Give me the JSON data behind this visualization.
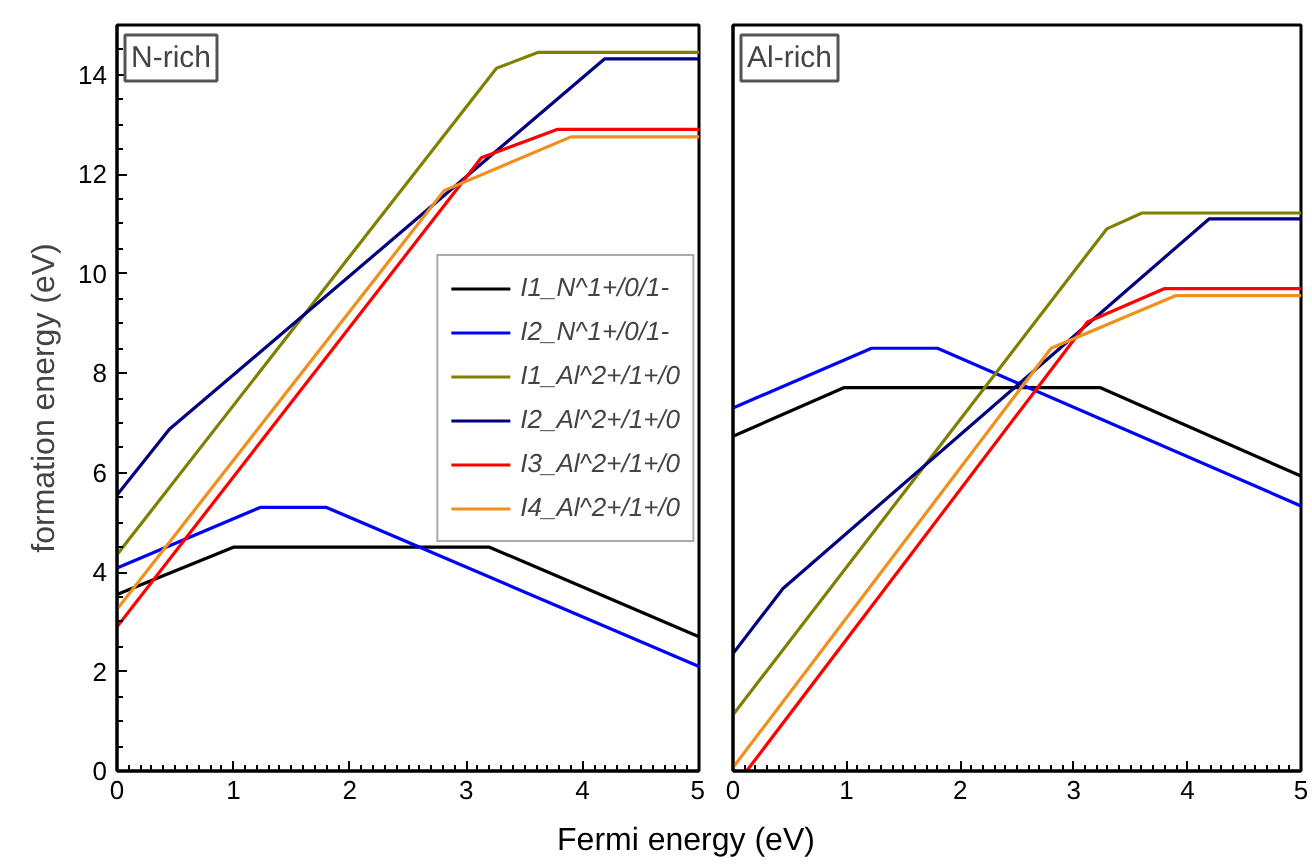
{
  "chart_data": [
    {
      "type": "line",
      "title": "N-rich",
      "xlabel": "Fermi energy (eV)",
      "ylabel": "formation energy (eV)",
      "xlim": [
        0,
        5
      ],
      "xticks": [
        0,
        1,
        2,
        3,
        4,
        5
      ],
      "ylim": [
        0,
        15
      ],
      "yticks": [
        0,
        2,
        4,
        6,
        8,
        10,
        12,
        14
      ],
      "grid": false,
      "legend": "right",
      "marker": "none",
      "line_style": "solid",
      "series": [
        {
          "name": "I1_N^1+/0/1-",
          "color": "#000000",
          "x": [
            0,
            1,
            3.2,
            5
          ],
          "values": [
            3.55,
            4.5,
            4.5,
            2.7
          ]
        },
        {
          "name": "I2_N^1+/0/1-",
          "color": "#0000ff",
          "x": [
            0,
            1.23,
            1.8,
            5
          ],
          "values": [
            4.08,
            5.3,
            5.3,
            2.1
          ]
        },
        {
          "name": "I1_Al^2+/1+/0",
          "color": "#808000",
          "x": [
            0,
            3.26,
            3.62,
            5
          ],
          "values": [
            4.35,
            14.13,
            14.45,
            14.45
          ]
        },
        {
          "name": "I2_Al^2+/1+/0",
          "color": "#000080",
          "x": [
            0,
            0.45,
            4.19,
            5
          ],
          "values": [
            5.55,
            6.87,
            14.32,
            14.32
          ]
        },
        {
          "name": "I3_Al^2+/1+/0",
          "color": "#ff0000",
          "x": [
            0,
            3.13,
            3.78,
            5
          ],
          "values": [
            2.9,
            12.33,
            12.9,
            12.9
          ]
        },
        {
          "name": "I4_Al^2+/1+/0",
          "color": "#f0901c",
          "x": [
            0,
            2.81,
            3.9,
            5
          ],
          "values": [
            3.25,
            11.67,
            12.75,
            12.75
          ]
        }
      ]
    },
    {
      "type": "line",
      "title": "Al-rich",
      "xlim": [
        0,
        5
      ],
      "xticks": [
        0,
        1,
        2,
        3,
        4,
        5
      ],
      "ylim": [
        0,
        15
      ],
      "tick_labels": "x",
      "grid": false,
      "marker": "none",
      "line_style": "solid",
      "series": [
        {
          "color": "#000000",
          "x": [
            0,
            0.98,
            3.23,
            5
          ],
          "values": [
            6.73,
            7.71,
            7.71,
            5.93
          ]
        },
        {
          "color": "#0000ff",
          "x": [
            0,
            1.22,
            1.8,
            5
          ],
          "values": [
            7.3,
            8.5,
            8.5,
            5.33
          ]
        },
        {
          "color": "#808000",
          "x": [
            0,
            3.29,
            3.6,
            5
          ],
          "values": [
            1.13,
            10.9,
            11.22,
            11.22
          ]
        },
        {
          "color": "#000080",
          "x": [
            0,
            0.44,
            4.19,
            5
          ],
          "values": [
            2.36,
            3.67,
            11.1,
            11.1
          ]
        },
        {
          "color": "#ff0000",
          "x": [
            0.12,
            3.12,
            3.8,
            5
          ],
          "values": [
            0,
            9.03,
            9.7,
            9.7
          ]
        },
        {
          "color": "#f0901c",
          "x": [
            0,
            2.8,
            3.9,
            5
          ],
          "values": [
            0.07,
            8.5,
            9.56,
            9.56
          ]
        }
      ]
    }
  ]
}
